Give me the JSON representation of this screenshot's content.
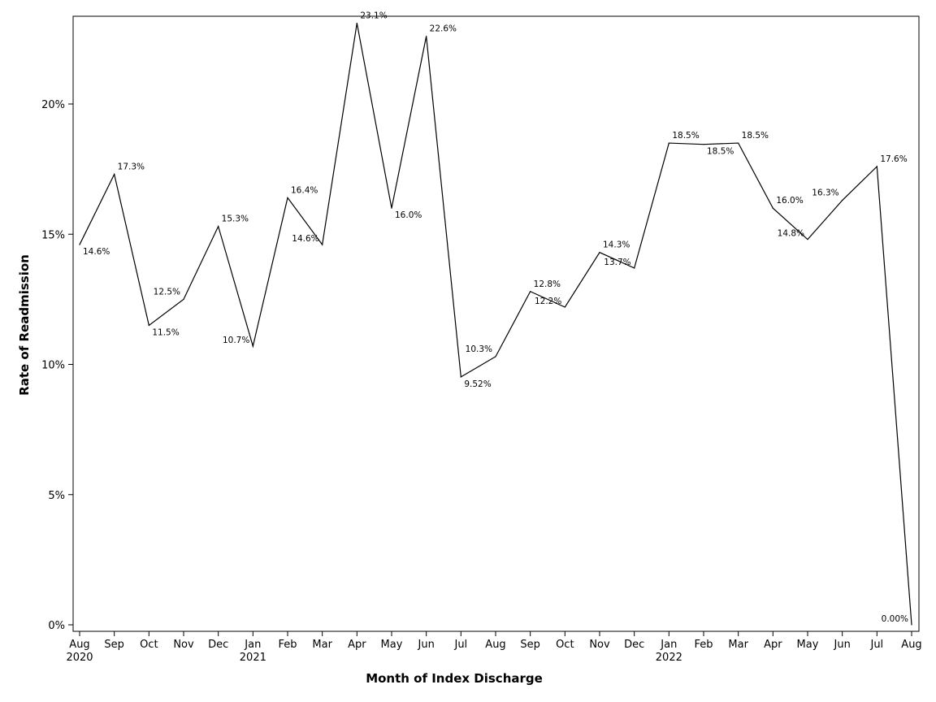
{
  "chart_data": {
    "type": "line",
    "title": "",
    "xlabel": "Month of Index Discharge",
    "ylabel": "Rate of Readmission",
    "ylim": [
      0,
      23.2
    ],
    "yticks": [
      {
        "value": 0,
        "label": "0%"
      },
      {
        "value": 5,
        "label": "5%"
      },
      {
        "value": 10,
        "label": "10%"
      },
      {
        "value": 15,
        "label": "15%"
      },
      {
        "value": 20,
        "label": "20%"
      }
    ],
    "grid": false,
    "legend": "none",
    "line_color": "#000000",
    "categories": [
      {
        "month": "Aug",
        "year": "2020"
      },
      {
        "month": "Sep",
        "year": ""
      },
      {
        "month": "Oct",
        "year": ""
      },
      {
        "month": "Nov",
        "year": ""
      },
      {
        "month": "Dec",
        "year": ""
      },
      {
        "month": "Jan",
        "year": "2021"
      },
      {
        "month": "Feb",
        "year": ""
      },
      {
        "month": "Mar",
        "year": ""
      },
      {
        "month": "Apr",
        "year": ""
      },
      {
        "month": "May",
        "year": ""
      },
      {
        "month": "Jun",
        "year": ""
      },
      {
        "month": "Jul",
        "year": ""
      },
      {
        "month": "Aug",
        "year": ""
      },
      {
        "month": "Sep",
        "year": ""
      },
      {
        "month": "Oct",
        "year": ""
      },
      {
        "month": "Nov",
        "year": ""
      },
      {
        "month": "Dec",
        "year": ""
      },
      {
        "month": "Jan",
        "year": "2022"
      },
      {
        "month": "Feb",
        "year": ""
      },
      {
        "month": "Mar",
        "year": ""
      },
      {
        "month": "Apr",
        "year": ""
      },
      {
        "month": "May",
        "year": ""
      },
      {
        "month": "Jun",
        "year": ""
      },
      {
        "month": "Jul",
        "year": ""
      },
      {
        "month": "Aug",
        "year": ""
      }
    ],
    "values": [
      14.6,
      17.3,
      11.5,
      12.5,
      15.3,
      10.7,
      16.4,
      14.6,
      23.1,
      16.0,
      22.6,
      9.52,
      10.3,
      12.8,
      12.2,
      14.3,
      13.7,
      18.5,
      18.45,
      18.5,
      16.0,
      14.8,
      16.3,
      17.6,
      0.0
    ],
    "labels": [
      "14.6%",
      "17.3%",
      "11.5%",
      "12.5%",
      "15.3%",
      "10.7%",
      "16.4%",
      "14.6%",
      "23.1%",
      "16.0%",
      "22.6%",
      "9.52%",
      "10.3%",
      "12.8%",
      "12.2%",
      "14.3%",
      "13.7%",
      "18.5%",
      "18.5%",
      "18.5%",
      "16.0%",
      "14.8%",
      "16.3%",
      "17.6%",
      "0.00%"
    ]
  }
}
